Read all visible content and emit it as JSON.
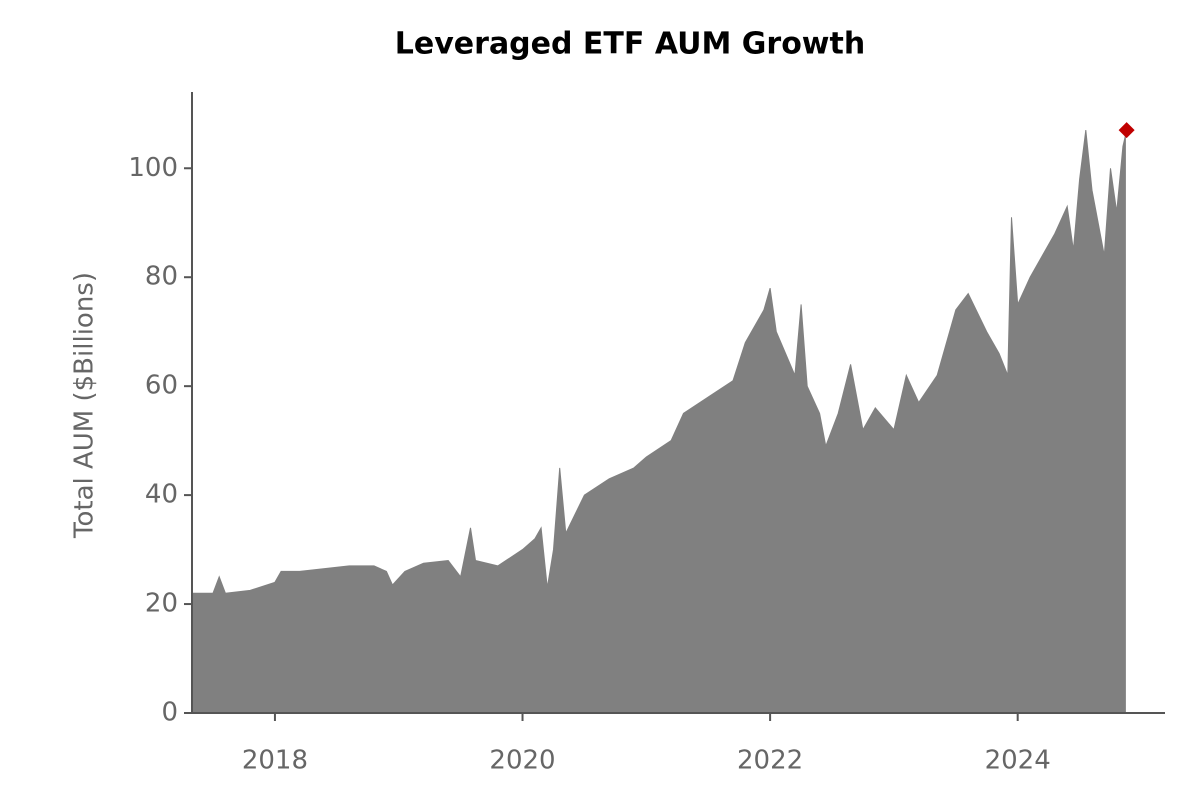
{
  "chart_data": {
    "type": "area",
    "title": "Leveraged ETF AUM Growth",
    "y_label": "Total AUM ($Billions)",
    "x": [
      2017.33,
      2017.5,
      2017.55,
      2017.6,
      2017.8,
      2018.0,
      2018.05,
      2018.2,
      2018.4,
      2018.6,
      2018.8,
      2018.9,
      2018.95,
      2019.05,
      2019.2,
      2019.4,
      2019.5,
      2019.58,
      2019.62,
      2019.8,
      2020.0,
      2020.1,
      2020.15,
      2020.2,
      2020.25,
      2020.3,
      2020.35,
      2020.5,
      2020.7,
      2020.9,
      2021.0,
      2021.2,
      2021.3,
      2021.5,
      2021.7,
      2021.8,
      2021.95,
      2022.0,
      2022.05,
      2022.2,
      2022.25,
      2022.3,
      2022.4,
      2022.45,
      2022.55,
      2022.65,
      2022.75,
      2022.85,
      2023.0,
      2023.1,
      2023.2,
      2023.35,
      2023.5,
      2023.6,
      2023.75,
      2023.85,
      2023.92,
      2023.95,
      2024.0,
      2024.1,
      2024.3,
      2024.4,
      2024.45,
      2024.5,
      2024.55,
      2024.6,
      2024.7,
      2024.75,
      2024.8,
      2024.85,
      2024.87
    ],
    "series": [
      {
        "color": "#808080",
        "values": [
          22,
          22,
          25,
          22,
          22.5,
          24,
          26,
          26,
          26.5,
          27,
          27,
          26,
          23.5,
          26,
          27.5,
          28,
          25,
          34,
          28,
          27,
          30,
          32,
          34,
          23,
          30,
          45,
          33,
          40,
          43,
          45,
          47,
          50,
          55,
          58,
          61,
          68,
          74,
          78,
          70,
          62,
          75,
          60,
          55,
          49,
          55,
          64,
          52,
          56,
          52,
          62,
          57,
          62,
          74,
          77,
          70,
          66,
          62,
          91,
          75,
          80,
          88,
          93,
          85,
          98,
          107,
          96,
          84,
          100,
          92,
          104,
          106
        ]
      }
    ],
    "highlight": {
      "x": 2024.88,
      "y": 107,
      "color": "#c00000"
    },
    "xlim": [
      2017.33,
      2025.19
    ],
    "xticks": [
      2018,
      2020,
      2022,
      2024
    ],
    "ylim": [
      0,
      114
    ],
    "yticks": [
      0,
      20,
      40,
      60,
      80,
      100
    ]
  }
}
